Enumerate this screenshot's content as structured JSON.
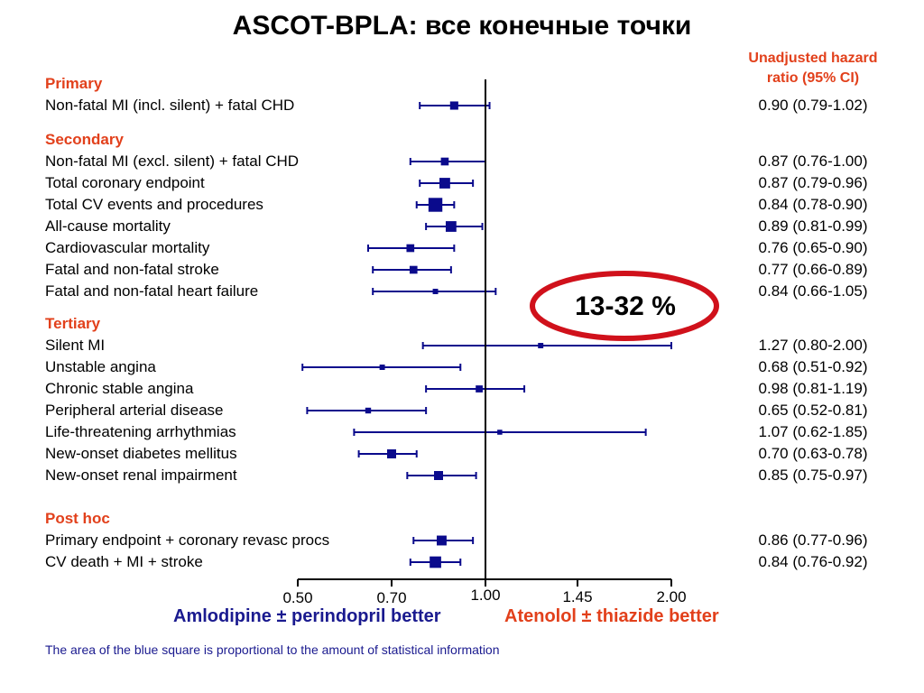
{
  "title": "ASCOT-BPLA: все конечные точки",
  "hr_header": [
    "Unadjusted hazard",
    "ratio (95% CI)"
  ],
  "badge": "13-32 %",
  "better_left": "Amlodipine ± perindopril better",
  "better_right": "Atenolol ± thiazide better",
  "footnote": "The area of the blue square is proportional to the amount of statistical information",
  "colors": {
    "marker": "#0a0a8c",
    "section": "#e2401b",
    "badge_ring": "#d0111b"
  },
  "chart_data": {
    "type": "forest",
    "xlim": [
      0.5,
      2.0
    ],
    "reference_line": 1.0,
    "xticks": [
      {
        "value": 0.5,
        "label": "0.50"
      },
      {
        "value": 0.7,
        "label": "0.70"
      },
      {
        "value": 1.0,
        "label": "1.00"
      },
      {
        "value": 1.45,
        "label": "1.45"
      },
      {
        "value": 2.0,
        "label": "2.00"
      }
    ],
    "sections": [
      {
        "name": "Primary",
        "rows": [
          {
            "label": "Non-fatal MI (incl. silent) + fatal CHD",
            "hr": 0.9,
            "lo": 0.79,
            "hi": 1.02,
            "text": "0.90 (0.79-1.02)",
            "weight": 0.9
          }
        ]
      },
      {
        "name": "Secondary",
        "rows": [
          {
            "label": "Non-fatal MI (excl. silent) + fatal CHD",
            "hr": 0.87,
            "lo": 0.76,
            "hi": 1.0,
            "text": "0.87 (0.76-1.00)",
            "weight": 0.85
          },
          {
            "label": "Total coronary endpoint",
            "hr": 0.87,
            "lo": 0.79,
            "hi": 0.96,
            "text": "0.87 (0.79-0.96)",
            "weight": 1.2
          },
          {
            "label": "Total CV events and procedures",
            "hr": 0.84,
            "lo": 0.78,
            "hi": 0.9,
            "text": "0.84 (0.78-0.90)",
            "weight": 1.6
          },
          {
            "label": "All-cause mortality",
            "hr": 0.89,
            "lo": 0.81,
            "hi": 0.99,
            "text": "0.89 (0.81-0.99)",
            "weight": 1.2
          },
          {
            "label": "Cardiovascular mortality",
            "hr": 0.76,
            "lo": 0.65,
            "hi": 0.9,
            "text": "0.76 (0.65-0.90)",
            "weight": 0.85
          },
          {
            "label": "Fatal and non-fatal stroke",
            "hr": 0.77,
            "lo": 0.66,
            "hi": 0.89,
            "text": "0.77 (0.66-0.89)",
            "weight": 0.85
          },
          {
            "label": "Fatal and non-fatal heart failure",
            "hr": 0.84,
            "lo": 0.66,
            "hi": 1.05,
            "text": "0.84 (0.66-1.05)",
            "weight": 0.55
          }
        ]
      },
      {
        "name": "Tertiary",
        "rows": [
          {
            "label": "Silent MI",
            "hr": 1.27,
            "lo": 0.8,
            "hi": 2.0,
            "text": "1.27 (0.80-2.00)",
            "weight": 0.55
          },
          {
            "label": "Unstable angina",
            "hr": 0.68,
            "lo": 0.51,
            "hi": 0.92,
            "text": "0.68 (0.51-0.92)",
            "weight": 0.55
          },
          {
            "label": "Chronic stable angina",
            "hr": 0.98,
            "lo": 0.81,
            "hi": 1.19,
            "text": "0.98 (0.81-1.19)",
            "weight": 0.75
          },
          {
            "label": "Peripheral arterial disease",
            "hr": 0.65,
            "lo": 0.52,
            "hi": 0.81,
            "text": "0.65 (0.52-0.81)",
            "weight": 0.6
          },
          {
            "label": "Life-threatening arrhythmias",
            "hr": 1.07,
            "lo": 0.62,
            "hi": 1.85,
            "text": "1.07 (0.62-1.85)",
            "weight": 0.5
          },
          {
            "label": "New-onset diabetes mellitus",
            "hr": 0.7,
            "lo": 0.63,
            "hi": 0.78,
            "text": "0.70 (0.63-0.78)",
            "weight": 1.0
          },
          {
            "label": "New-onset renal impairment",
            "hr": 0.85,
            "lo": 0.75,
            "hi": 0.97,
            "text": "0.85 (0.75-0.97)",
            "weight": 1.0
          }
        ]
      },
      {
        "name": "Post hoc",
        "rows": [
          {
            "label": "Primary endpoint + coronary revasc procs",
            "hr": 0.86,
            "lo": 0.77,
            "hi": 0.96,
            "text": "0.86 (0.77-0.96)",
            "weight": 1.1
          },
          {
            "label": "CV death + MI + stroke",
            "hr": 0.84,
            "lo": 0.76,
            "hi": 0.92,
            "text": "0.84 (0.76-0.92)",
            "weight": 1.3
          }
        ]
      }
    ]
  }
}
